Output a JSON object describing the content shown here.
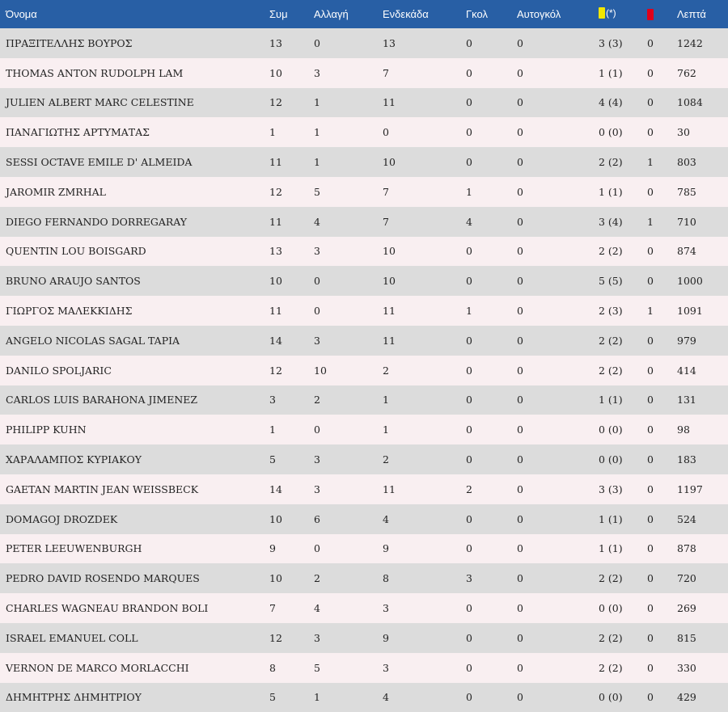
{
  "headers": {
    "name": "Όνομα",
    "appearances": "Συμ",
    "substitute": "Αλλαγή",
    "starting": "Ενδεκάδα",
    "goals": "Γκολ",
    "own_goals": "Αυτογκόλ",
    "yellow_suffix": "(*)",
    "minutes": "Λεπτά"
  },
  "colors": {
    "header_bg": "#285fa5",
    "row_odd": "#dcdcdc",
    "row_even": "#f9eff1",
    "yellow_card": "#f2e600",
    "red_card": "#e0001a"
  },
  "icons": {
    "yellow": "yellow-card-icon",
    "red": "red-card-icon"
  },
  "players": [
    {
      "name": "ΠΡΑΞΙΤΕΛΛΗΣ ΒΟΥΡΟΣ",
      "apps": "13",
      "sub": "0",
      "start": "13",
      "goals": "0",
      "own": "0",
      "yellow": "3 (3)",
      "red": "0",
      "minutes": "1242"
    },
    {
      "name": "THOMAS ANTON RUDOLPH LAM",
      "apps": "10",
      "sub": "3",
      "start": "7",
      "goals": "0",
      "own": "0",
      "yellow": "1 (1)",
      "red": "0",
      "minutes": "762"
    },
    {
      "name": "JULIEN ALBERT MARC CELESTINE",
      "apps": "12",
      "sub": "1",
      "start": "11",
      "goals": "0",
      "own": "0",
      "yellow": "4 (4)",
      "red": "0",
      "minutes": "1084"
    },
    {
      "name": "ΠΑΝΑΓΙΩΤΗΣ ΑΡΤΥΜΑΤΑΣ",
      "apps": "1",
      "sub": "1",
      "start": "0",
      "goals": "0",
      "own": "0",
      "yellow": "0 (0)",
      "red": "0",
      "minutes": "30"
    },
    {
      "name": "SESSI OCTAVE EMILE D' ALMEIDA",
      "apps": "11",
      "sub": "1",
      "start": "10",
      "goals": "0",
      "own": "0",
      "yellow": "2 (2)",
      "red": "1",
      "minutes": "803"
    },
    {
      "name": "JAROMIR ZMRHAL",
      "apps": "12",
      "sub": "5",
      "start": "7",
      "goals": "1",
      "own": "0",
      "yellow": "1 (1)",
      "red": "0",
      "minutes": "785"
    },
    {
      "name": "DIEGO FERNANDO DORREGARAY",
      "apps": "11",
      "sub": "4",
      "start": "7",
      "goals": "4",
      "own": "0",
      "yellow": "3 (4)",
      "red": "1",
      "minutes": "710"
    },
    {
      "name": "QUENTIN LOU BOISGARD",
      "apps": "13",
      "sub": "3",
      "start": "10",
      "goals": "0",
      "own": "0",
      "yellow": "2 (2)",
      "red": "0",
      "minutes": "874"
    },
    {
      "name": "BRUNO ARAUJO SANTOS",
      "apps": "10",
      "sub": "0",
      "start": "10",
      "goals": "0",
      "own": "0",
      "yellow": "5 (5)",
      "red": "0",
      "minutes": "1000"
    },
    {
      "name": "ΓΙΩΡΓΟΣ ΜΑΛΕΚΚΙΔΗΣ",
      "apps": "11",
      "sub": "0",
      "start": "11",
      "goals": "1",
      "own": "0",
      "yellow": "2 (3)",
      "red": "1",
      "minutes": "1091"
    },
    {
      "name": "ANGELO NICOLAS SAGAL TAPIA",
      "apps": "14",
      "sub": "3",
      "start": "11",
      "goals": "0",
      "own": "0",
      "yellow": "2 (2)",
      "red": "0",
      "minutes": "979"
    },
    {
      "name": "DANILO SPOLJARIC",
      "apps": "12",
      "sub": "10",
      "start": "2",
      "goals": "0",
      "own": "0",
      "yellow": "2 (2)",
      "red": "0",
      "minutes": "414"
    },
    {
      "name": "CARLOS LUIS BARAHONA JIMENEZ",
      "apps": "3",
      "sub": "2",
      "start": "1",
      "goals": "0",
      "own": "0",
      "yellow": "1 (1)",
      "red": "0",
      "minutes": "131"
    },
    {
      "name": "PHILIPP KUHN",
      "apps": "1",
      "sub": "0",
      "start": "1",
      "goals": "0",
      "own": "0",
      "yellow": "0 (0)",
      "red": "0",
      "minutes": "98"
    },
    {
      "name": "ΧΑΡΑΛΑΜΠΟΣ ΚΥΡΙΑΚΟΥ",
      "apps": "5",
      "sub": "3",
      "start": "2",
      "goals": "0",
      "own": "0",
      "yellow": "0 (0)",
      "red": "0",
      "minutes": "183"
    },
    {
      "name": "GAETAN MARTIN JEAN WEISSBECK",
      "apps": "14",
      "sub": "3",
      "start": "11",
      "goals": "2",
      "own": "0",
      "yellow": "3 (3)",
      "red": "0",
      "minutes": "1197"
    },
    {
      "name": "DOMAGOJ DROZDEK",
      "apps": "10",
      "sub": "6",
      "start": "4",
      "goals": "0",
      "own": "0",
      "yellow": "1 (1)",
      "red": "0",
      "minutes": "524"
    },
    {
      "name": "PETER LEEUWENBURGH",
      "apps": "9",
      "sub": "0",
      "start": "9",
      "goals": "0",
      "own": "0",
      "yellow": "1 (1)",
      "red": "0",
      "minutes": "878"
    },
    {
      "name": "PEDRO DAVID ROSENDO MARQUES",
      "apps": "10",
      "sub": "2",
      "start": "8",
      "goals": "3",
      "own": "0",
      "yellow": "2 (2)",
      "red": "0",
      "minutes": "720"
    },
    {
      "name": "CHARLES WAGNEAU BRANDON BOLI",
      "apps": "7",
      "sub": "4",
      "start": "3",
      "goals": "0",
      "own": "0",
      "yellow": "0 (0)",
      "red": "0",
      "minutes": "269"
    },
    {
      "name": "ISRAEL EMANUEL COLL",
      "apps": "12",
      "sub": "3",
      "start": "9",
      "goals": "0",
      "own": "0",
      "yellow": "2 (2)",
      "red": "0",
      "minutes": "815"
    },
    {
      "name": "VERNON DE MARCO MORLACCHI",
      "apps": "8",
      "sub": "5",
      "start": "3",
      "goals": "0",
      "own": "0",
      "yellow": "2 (2)",
      "red": "0",
      "minutes": "330"
    },
    {
      "name": "ΔΗΜΗΤΡΗΣ ΔΗΜΗΤΡΙΟΥ",
      "apps": "5",
      "sub": "1",
      "start": "4",
      "goals": "0",
      "own": "0",
      "yellow": "0 (0)",
      "red": "0",
      "minutes": "429"
    }
  ]
}
